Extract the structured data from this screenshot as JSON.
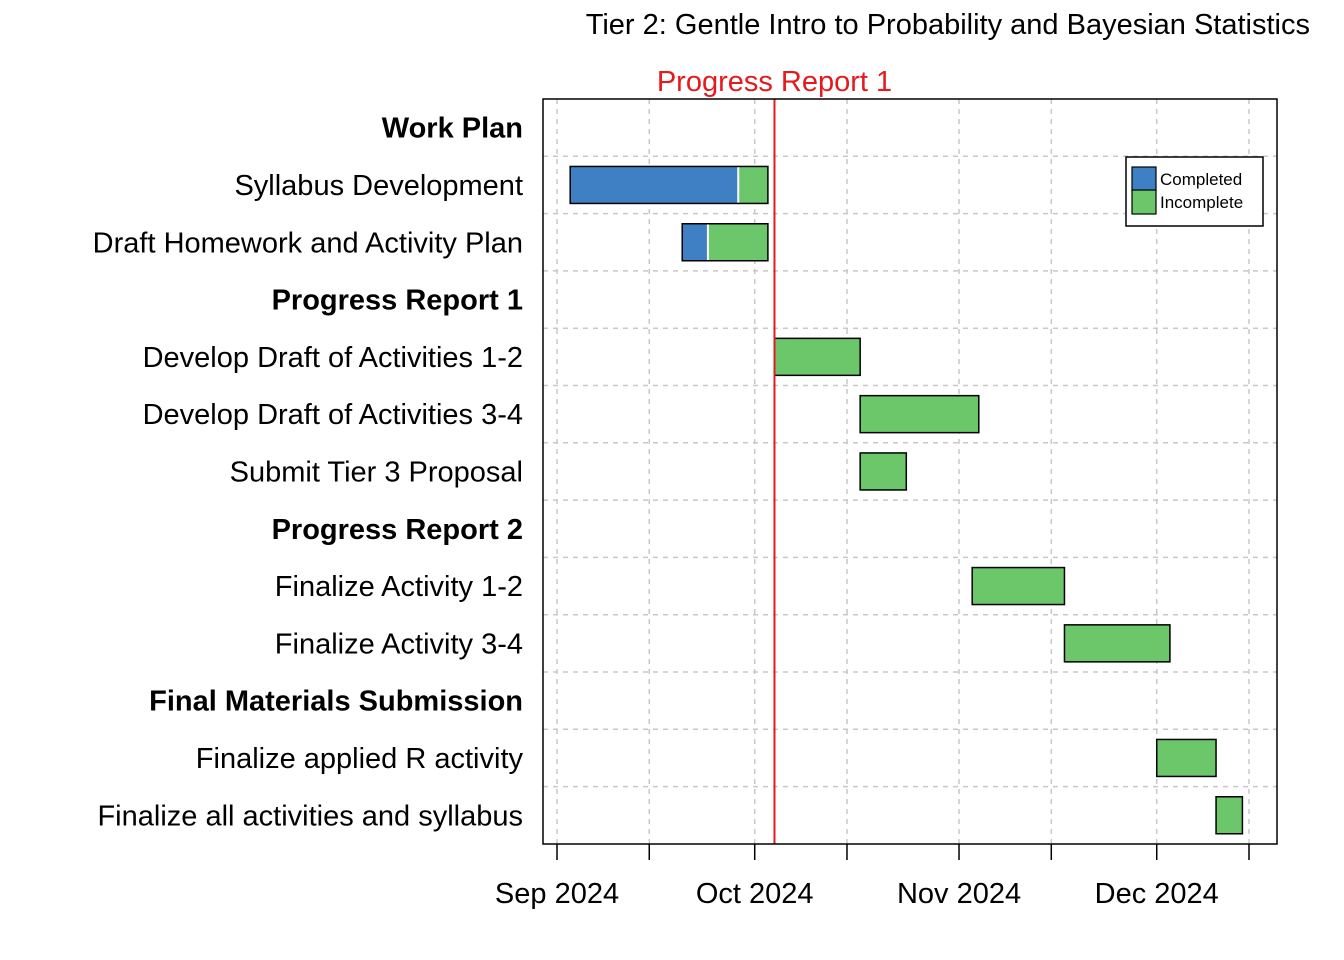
{
  "chart_data": {
    "type": "gantt",
    "title": "Tier 2: Gentle Intro to Probability and Bayesian Statistics",
    "milestone": {
      "label": "Progress Report 1",
      "date": "2024-10-04",
      "color": "#e41a1c"
    },
    "x_ticks": [
      {
        "date": "2024-09-01",
        "label": "Sep 2024"
      },
      {
        "date": "2024-09-15",
        "label": ""
      },
      {
        "date": "2024-10-01",
        "label": "Oct 2024"
      },
      {
        "date": "2024-10-15",
        "label": ""
      },
      {
        "date": "2024-11-01",
        "label": "Nov 2024"
      },
      {
        "date": "2024-11-15",
        "label": ""
      },
      {
        "date": "2024-12-01",
        "label": "Dec 2024"
      },
      {
        "date": "2024-12-15",
        "label": ""
      }
    ],
    "xlim": [
      "2024-08-29",
      "2024-12-20"
    ],
    "grid": true,
    "legend": {
      "position": "top-right",
      "entries": [
        {
          "label": "Completed",
          "color": "#3f80c4"
        },
        {
          "label": "Incomplete",
          "color": "#6cc66a"
        }
      ]
    },
    "tasks": [
      {
        "label": "Work Plan",
        "header": true
      },
      {
        "label": "Syllabus Development",
        "start": "2024-09-03",
        "end": "2024-10-03",
        "completed_fraction": 0.85
      },
      {
        "label": "Draft Homework and Activity Plan",
        "start": "2024-09-20",
        "end": "2024-10-03",
        "completed_fraction": 0.3
      },
      {
        "label": "Progress Report 1",
        "header": true
      },
      {
        "label": "Develop Draft of Activities 1-2",
        "start": "2024-10-04",
        "end": "2024-10-17",
        "completed_fraction": 0
      },
      {
        "label": "Develop Draft of Activities 3-4",
        "start": "2024-10-17",
        "end": "2024-11-04",
        "completed_fraction": 0
      },
      {
        "label": "Submit Tier 3 Proposal",
        "start": "2024-10-17",
        "end": "2024-10-24",
        "completed_fraction": 0
      },
      {
        "label": "Progress Report 2",
        "header": true
      },
      {
        "label": "Finalize Activity 1-2",
        "start": "2024-11-03",
        "end": "2024-11-17",
        "completed_fraction": 0
      },
      {
        "label": "Finalize Activity 3-4",
        "start": "2024-11-17",
        "end": "2024-12-03",
        "completed_fraction": 0
      },
      {
        "label": "Final Materials Submission",
        "header": true
      },
      {
        "label": "Finalize applied R activity",
        "start": "2024-12-01",
        "end": "2024-12-10",
        "completed_fraction": 0
      },
      {
        "label": "Finalize all activities and syllabus",
        "start": "2024-12-10",
        "end": "2024-12-14",
        "completed_fraction": 0
      }
    ]
  }
}
